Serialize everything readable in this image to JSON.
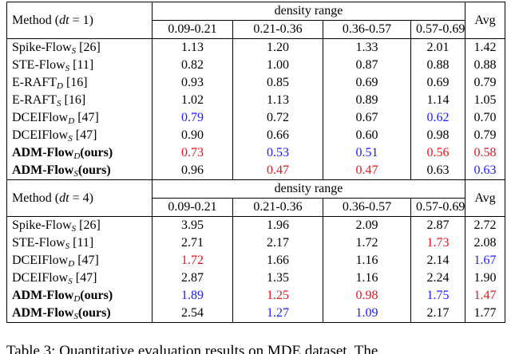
{
  "sections": [
    {
      "method_header": {
        "pre": "Method (",
        "var": "dt",
        "post": " = 1)"
      },
      "group_header": "density range",
      "columns": [
        "0.09-0.21",
        "0.21-0.36",
        "0.36-0.57",
        "0.57-0.69"
      ],
      "avg_header": "Avg",
      "rows": [
        {
          "method": "Spike-Flow",
          "sub": "S",
          "suffix": " [26]",
          "bold": false,
          "values": [
            "1.13",
            "1.20",
            "1.33",
            "2.01",
            "1.42"
          ],
          "colors": [
            null,
            null,
            null,
            null,
            null
          ]
        },
        {
          "method": "STE-Flow",
          "sub": "S",
          "suffix": " [11]",
          "bold": false,
          "values": [
            "0.82",
            "1.00",
            "0.87",
            "0.88",
            "0.88"
          ],
          "colors": [
            null,
            null,
            null,
            null,
            null
          ]
        },
        {
          "method": "E-RAFT",
          "sub": "D",
          "suffix": " [16]",
          "bold": false,
          "values": [
            "0.93",
            "0.85",
            "0.69",
            "0.69",
            "0.79"
          ],
          "colors": [
            null,
            null,
            null,
            null,
            null
          ]
        },
        {
          "method": "E-RAFT",
          "sub": "S",
          "suffix": " [16]",
          "bold": false,
          "values": [
            "1.02",
            "1.13",
            "0.89",
            "1.14",
            "1.05"
          ],
          "colors": [
            null,
            null,
            null,
            null,
            null
          ]
        },
        {
          "method": "DCEIFlow",
          "sub": "D",
          "suffix": " [47]",
          "bold": false,
          "values": [
            "0.79",
            "0.72",
            "0.67",
            "0.62",
            "0.70"
          ],
          "colors": [
            "#1a1aff",
            null,
            null,
            "#1a1aff",
            null
          ]
        },
        {
          "method": "DCEIFlow",
          "sub": "S",
          "suffix": " [47]",
          "bold": false,
          "values": [
            "0.90",
            "0.66",
            "0.60",
            "0.98",
            "0.79"
          ],
          "colors": [
            null,
            null,
            null,
            null,
            null
          ]
        },
        {
          "method": "ADM-Flow",
          "sub": "D",
          "suffix": "(ours)",
          "bold": true,
          "values": [
            "0.73",
            "0.53",
            "0.51",
            "0.56",
            "0.58"
          ],
          "colors": [
            "#e8141b",
            "#1a1aff",
            "#1a1aff",
            "#e8141b",
            "#e8141b"
          ]
        },
        {
          "method": "ADM-Flow",
          "sub": "S",
          "suffix": "(ours)",
          "bold": true,
          "values": [
            "0.96",
            "0.47",
            "0.47",
            "0.63",
            "0.63"
          ],
          "colors": [
            null,
            "#e8141b",
            "#e8141b",
            null,
            "#1a1aff"
          ]
        }
      ]
    },
    {
      "method_header": {
        "pre": "Method (",
        "var": "dt",
        "post": " = 4)"
      },
      "group_header": "density range",
      "columns": [
        "0.09-0.21",
        "0.21-0.36",
        "0.36-0.57",
        "0.57-0.69"
      ],
      "avg_header": "Avg",
      "rows": [
        {
          "method": "Spike-Flow",
          "sub": "S",
          "suffix": " [26]",
          "bold": false,
          "values": [
            "3.95",
            "1.96",
            "2.09",
            "2.87",
            "2.72"
          ],
          "colors": [
            null,
            null,
            null,
            null,
            null
          ]
        },
        {
          "method": "STE-Flow",
          "sub": "S",
          "suffix": " [11]",
          "bold": false,
          "values": [
            "2.71",
            "2.17",
            "1.72",
            "1.73",
            "2.08"
          ],
          "colors": [
            null,
            null,
            null,
            "#e8141b",
            null
          ]
        },
        {
          "method": "DCEIFlow",
          "sub": "D",
          "suffix": " [47]",
          "bold": false,
          "values": [
            "1.72",
            "1.66",
            "1.16",
            "2.14",
            "1.67"
          ],
          "colors": [
            "#e8141b",
            null,
            null,
            null,
            "#1a1aff"
          ]
        },
        {
          "method": "DCEIFlow",
          "sub": "S",
          "suffix": " [47]",
          "bold": false,
          "values": [
            "2.87",
            "1.35",
            "1.16",
            "2.24",
            "1.90"
          ],
          "colors": [
            null,
            null,
            null,
            null,
            null
          ]
        },
        {
          "method": "ADM-Flow",
          "sub": "D",
          "suffix": "(ours)",
          "bold": true,
          "values": [
            "1.89",
            "1.25",
            "0.98",
            "1.75",
            "1.47"
          ],
          "colors": [
            "#1a1aff",
            "#e8141b",
            "#e8141b",
            "#1a1aff",
            "#e8141b"
          ]
        },
        {
          "method": "ADM-Flow",
          "sub": "S",
          "suffix": "(ours)",
          "bold": true,
          "values": [
            "2.54",
            "1.27",
            "1.09",
            "2.17",
            "1.77"
          ],
          "colors": [
            null,
            "#1a1aff",
            "#1a1aff",
            null,
            null
          ]
        }
      ]
    }
  ],
  "caption": "Table 3: Quantitative evaluation results on MDE dataset. The"
}
